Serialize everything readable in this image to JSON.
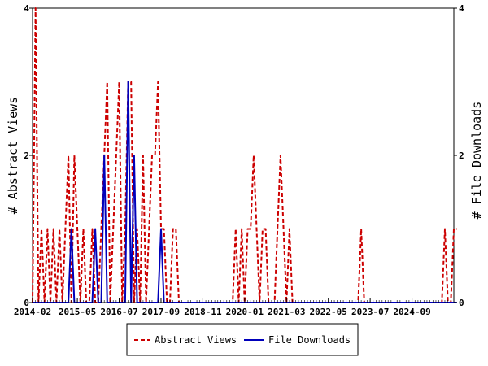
{
  "chart_data": {
    "type": "line",
    "ylabel_left": "# Abstract Views",
    "ylabel_right": "# File Downloads",
    "x_tick_labels": [
      "2014-02",
      "2015-05",
      "2016-07",
      "2017-09",
      "2018-11",
      "2020-01",
      "2021-03",
      "2022-05",
      "2023-07",
      "2024-09"
    ],
    "y_ticks_left": [
      "0",
      "2",
      "4"
    ],
    "y_ticks_right": [
      "0",
      "2",
      "4"
    ],
    "ylim_left": [
      0,
      4
    ],
    "ylim_right": [
      0,
      4
    ],
    "x_range_months": [
      "2014-02",
      "2025-11"
    ],
    "grid": false,
    "legend_position": "bottom-center",
    "series": [
      {
        "name": "Abstract Views",
        "color": "#cc0000",
        "style": "dashed",
        "axis": "left",
        "start": "2014-02",
        "values": [
          0,
          4,
          0,
          1,
          0,
          1,
          0,
          1,
          0,
          1,
          0,
          1,
          2,
          0,
          2,
          1,
          0,
          1,
          0,
          0,
          1,
          0,
          0,
          1,
          2,
          3,
          0,
          1,
          2,
          3,
          0,
          1,
          3,
          3,
          0,
          1,
          0,
          2,
          0,
          1,
          2,
          2,
          3,
          1,
          1,
          0,
          0,
          1,
          1,
          0,
          0,
          0,
          0,
          0,
          0,
          0,
          0,
          0,
          0,
          0,
          0,
          0,
          0,
          0,
          0,
          0,
          0,
          0,
          1,
          0,
          1,
          0,
          1,
          1,
          2,
          1,
          0,
          1,
          1,
          0,
          0,
          0,
          1,
          2,
          1,
          0,
          1,
          0,
          0,
          0,
          0,
          0,
          0,
          0,
          0,
          0,
          0,
          0,
          0,
          0,
          0,
          0,
          0,
          0,
          0,
          0,
          0,
          0,
          0,
          0,
          1,
          0,
          0,
          0,
          0,
          0,
          0,
          0,
          0,
          0,
          0,
          0,
          0,
          0,
          0,
          0,
          0,
          0,
          0,
          0,
          0,
          0,
          0,
          0,
          0,
          0,
          0,
          0,
          1,
          0,
          0,
          1,
          1
        ]
      },
      {
        "name": "File Downloads",
        "color": "#0000bb",
        "style": "solid",
        "axis": "right",
        "start": "2014-02",
        "values": [
          0,
          0,
          0,
          0,
          0,
          0,
          0,
          0,
          0,
          0,
          0,
          0,
          0,
          1,
          0,
          0,
          0,
          0,
          0,
          0,
          0,
          1,
          0,
          0,
          2,
          0,
          0,
          0,
          0,
          0,
          0,
          0,
          3,
          0,
          2,
          0,
          0,
          0,
          0,
          0,
          0,
          0,
          0,
          1,
          0,
          0,
          0,
          0,
          0,
          0,
          0,
          0,
          0,
          0,
          0,
          0,
          0,
          0,
          0,
          0,
          0,
          0,
          0,
          0,
          0,
          0,
          0,
          0,
          0,
          0,
          0,
          0,
          0,
          0,
          0,
          0,
          0,
          0,
          0,
          0,
          0,
          0,
          0,
          0,
          0,
          0,
          0,
          0,
          0,
          0,
          0,
          0,
          0,
          0,
          0,
          0,
          0,
          0,
          0,
          0,
          0,
          0,
          0,
          0,
          0,
          0,
          0,
          0,
          0,
          0,
          0,
          0,
          0,
          0,
          0,
          0,
          0,
          0,
          0,
          0,
          0,
          0,
          0,
          0,
          0,
          0,
          0,
          0,
          0,
          0,
          0,
          0,
          0,
          0,
          0,
          0,
          0,
          0,
          0,
          0,
          0,
          0,
          0
        ]
      }
    ]
  }
}
